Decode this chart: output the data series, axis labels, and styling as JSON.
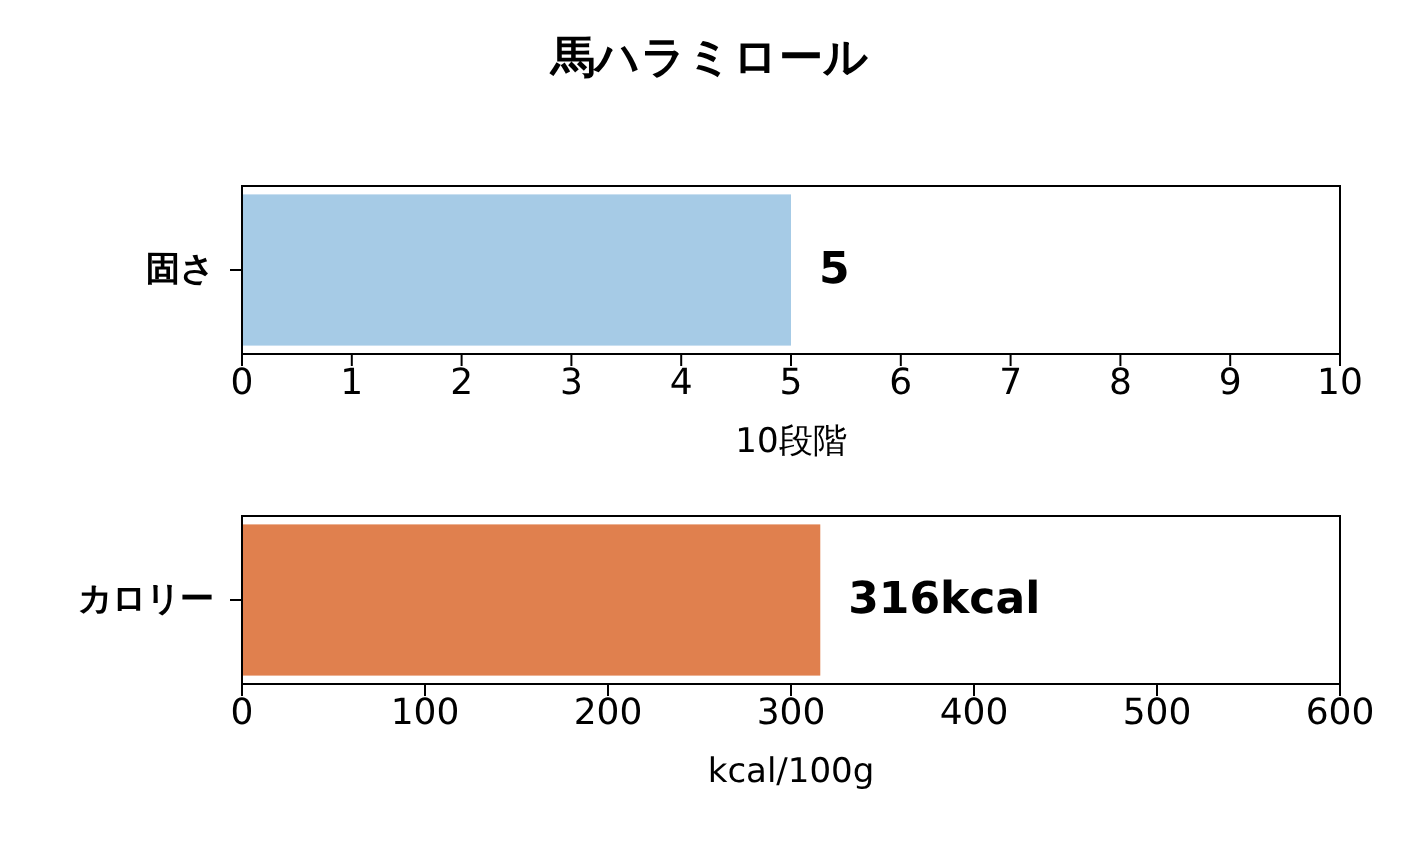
{
  "chart_data": [
    {
      "type": "bar",
      "title": "馬ハラミロール",
      "orientation": "horizontal",
      "categories": [
        "固さ"
      ],
      "values": [
        5
      ],
      "color": "#a6cbe6",
      "value_labels": [
        "5"
      ],
      "xlim": [
        0,
        10
      ],
      "xticks": [
        0,
        1,
        2,
        3,
        4,
        5,
        6,
        7,
        8,
        9,
        10
      ],
      "xlabel": "10段階"
    },
    {
      "type": "bar",
      "orientation": "horizontal",
      "categories": [
        "カロリー"
      ],
      "values": [
        316
      ],
      "color": "#e0804e",
      "value_labels": [
        "316kcal"
      ],
      "xlim": [
        0,
        600
      ],
      "xticks": [
        0,
        100,
        200,
        300,
        400,
        500,
        600
      ],
      "xlabel": "kcal/100g"
    }
  ]
}
